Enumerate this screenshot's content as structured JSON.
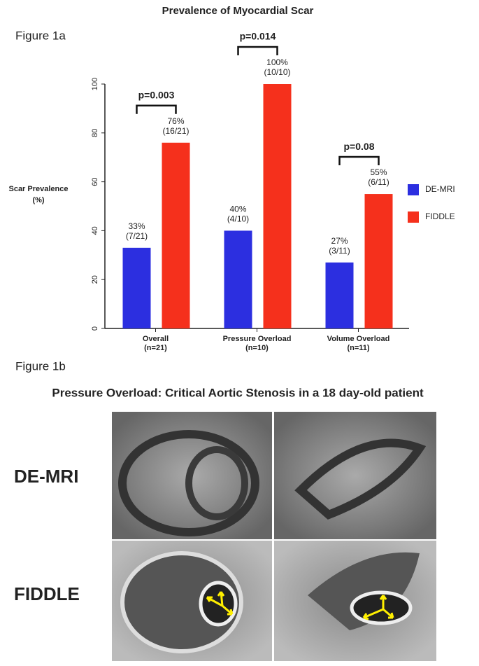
{
  "figure_labels": [
    "Figure 1a",
    "Figure 1b"
  ],
  "chart_data": {
    "type": "bar",
    "title": "Prevalence of Myocardial Scar",
    "ylabel": [
      "Scar Prevalence",
      "(%)"
    ],
    "categories": [
      "Overall",
      "Pressure Overload",
      "Volume Overload"
    ],
    "category_counts": [
      "(n=21)",
      "(n=10)",
      "(n=11)"
    ],
    "series": [
      {
        "name": "DE-MRI",
        "color": "#2c2fe0",
        "values": [
          33,
          40,
          27
        ],
        "value_labels": [
          [
            "33%",
            "(7/21)"
          ],
          [
            "40%",
            "(4/10)"
          ],
          [
            "27%",
            "(3/11)"
          ]
        ]
      },
      {
        "name": "FIDDLE",
        "color": "#f5301c",
        "values": [
          76,
          100,
          55
        ],
        "value_labels": [
          [
            "76%",
            "(16/21)"
          ],
          [
            "100%",
            "(10/10)"
          ],
          [
            "55%",
            "(6/11)"
          ]
        ]
      }
    ],
    "pvalues": [
      "p=0.003",
      "p=0.014",
      "p=0.08"
    ],
    "ylim": [
      0,
      100
    ],
    "yticks": [
      0,
      20,
      40,
      60,
      80,
      100
    ],
    "legend": "right"
  },
  "panel_b": {
    "title": "Pressure Overload: Critical Aortic Stenosis in a 18 day-old patient",
    "row_labels": [
      "DE-MRI",
      "FIDDLE"
    ]
  }
}
